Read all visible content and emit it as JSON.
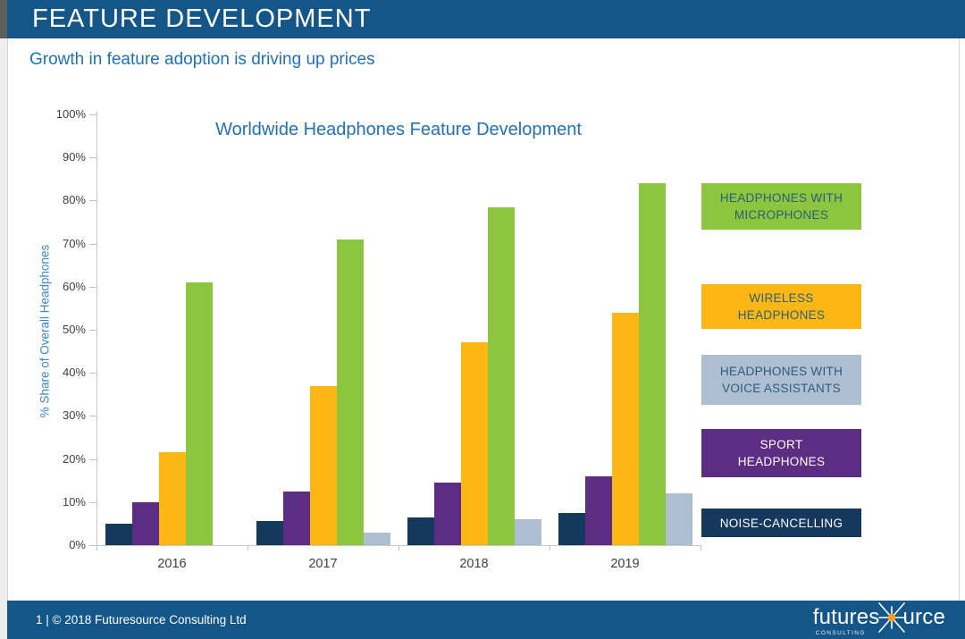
{
  "header": {
    "title": "FEATURE DEVELOPMENT"
  },
  "subtitle": "Growth in feature adoption is driving up prices",
  "chart_data": {
    "type": "bar",
    "title": "Worldwide Headphones Feature Development",
    "xlabel": "",
    "ylabel": "% Share of Overall Headphones",
    "categories": [
      "2016",
      "2017",
      "2018",
      "2019"
    ],
    "series": [
      {
        "name": "NOISE-CANCELLING",
        "color": "#14395C",
        "values": [
          5,
          5.5,
          6.5,
          7.5
        ]
      },
      {
        "name": "SPORT HEADPHONES",
        "color": "#5C2D83",
        "values": [
          10,
          12.5,
          14.5,
          16
        ]
      },
      {
        "name": "WIRELESS HEADPHONES",
        "color": "#FDB714",
        "values": [
          21.5,
          37,
          47,
          54
        ]
      },
      {
        "name": "HEADPHONES WITH MICROPHONES",
        "color": "#8CC63F",
        "values": [
          61,
          71,
          78.5,
          84
        ]
      },
      {
        "name": "HEADPHONES WITH VOICE ASSISTANTS",
        "color": "#AFBED2",
        "values": [
          0,
          3,
          6,
          12
        ]
      }
    ],
    "ylim": [
      0,
      100
    ],
    "ytick_labels": [
      "0%",
      "10%",
      "20%",
      "30%",
      "40%",
      "50%",
      "60%",
      "70%",
      "80%",
      "90%",
      "100%"
    ],
    "grid": false,
    "legend_position": "right"
  },
  "legend": {
    "items": [
      {
        "label": "HEADPHONES WITH\nMICROPHONES",
        "bg": "#8CC63F",
        "text_color": "#2A5F7A"
      },
      {
        "label": "WIRELESS\nHEADPHONES",
        "bg": "#FDB714",
        "text_color": "#2A5F7A"
      },
      {
        "label": "HEADPHONES WITH\nVOICE ASSISTANTS",
        "bg": "#AFBED2",
        "text_color": "#2A5F7A"
      },
      {
        "label": "SPORT\nHEADPHONES",
        "bg": "#5C2D83",
        "text_color": "#FFFFFF"
      },
      {
        "label": "NOISE-CANCELLING",
        "bg": "#14395C",
        "text_color": "#FFFFFF"
      }
    ]
  },
  "footer": {
    "page_info": "1 | © 2018 Futuresource Consulting Ltd",
    "logo": {
      "text_left": "futures",
      "text_right": "urce",
      "subtext": "CONSULTING",
      "star_icon": "starburst-icon",
      "star_color": "#F6A01A"
    }
  },
  "colors": {
    "banner_blue": "#135687",
    "title_blue": "#2171B5",
    "axis_label_blue": "#3D87C5",
    "tick_text": "#3F3F3F"
  }
}
